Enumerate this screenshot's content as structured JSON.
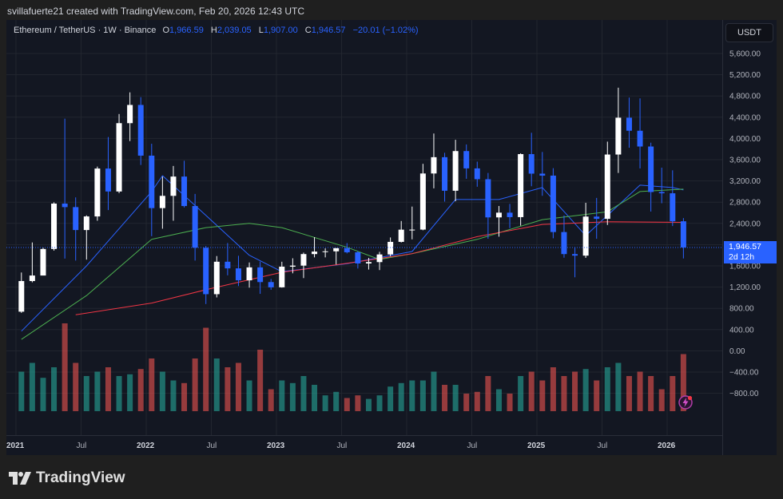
{
  "credit": "svillafuerte21 created with TradingView.com, Feb 20, 2026 12:43 UTC",
  "legend": {
    "symbol": "Ethereum / TetherUS · 1W · Binance",
    "o_label": "O",
    "o": "1,966.59",
    "h_label": "H",
    "h": "2,039.05",
    "l_label": "L",
    "l": "1,907.00",
    "c_label": "C",
    "c": "1,946.57",
    "change": "−20.01 (−1.02%)"
  },
  "currency_button": "USDT",
  "last_price": {
    "value": "1,946.57",
    "countdown": "2d 12h"
  },
  "brand": "TradingView",
  "icons": {
    "logo": "tradingview-logo-icon",
    "alert": "lightning-icon"
  },
  "colors": {
    "up": "#ffffff",
    "down": "#2962ff",
    "vol_up": "#26a69a",
    "vol_down": "#ef5350",
    "ma_blue": "#2962ff",
    "ma_green": "#4caf50",
    "ma_red": "#f23645",
    "background": "#131722"
  },
  "chart_data": {
    "type": "candlestick",
    "title": "",
    "y_ticks": [
      "5,600.00",
      "5,200.00",
      "4,800.00",
      "4,400.00",
      "4,000.00",
      "3,600.00",
      "3,200.00",
      "2,800.00",
      "2,400.00",
      "2,000.00",
      "1,600.00",
      "1,200.00",
      "800.00",
      "400.00",
      "0.00",
      "−400.00",
      "−800.00"
    ],
    "x_ticks": [
      {
        "label": "2021",
        "date": "2021-01",
        "year": true
      },
      {
        "label": "Jul",
        "date": "2021-07"
      },
      {
        "label": "2022",
        "date": "2022-01",
        "year": true
      },
      {
        "label": "Jul",
        "date": "2022-07"
      },
      {
        "label": "2023",
        "date": "2023-01",
        "year": true
      },
      {
        "label": "Jul",
        "date": "2023-07"
      },
      {
        "label": "2024",
        "date": "2024-01",
        "year": true
      },
      {
        "label": "Jul",
        "date": "2024-07"
      },
      {
        "label": "2025",
        "date": "2025-01",
        "year": true
      },
      {
        "label": "Jul",
        "date": "2025-07"
      },
      {
        "label": "2026",
        "date": "2026-01",
        "year": true
      }
    ],
    "ylim": [
      -1100,
      5900
    ],
    "grid": true,
    "columns": [
      "date",
      "open",
      "high",
      "low",
      "close",
      "volume_relative"
    ],
    "candles": [
      [
        "2021-01",
        737,
        1475,
        715,
        1314,
        45
      ],
      [
        "2021-02",
        1314,
        2041,
        1290,
        1418,
        55
      ],
      [
        "2021-03",
        1418,
        1943,
        1437,
        1918,
        38
      ],
      [
        "2021-04",
        1918,
        2797,
        1887,
        2773,
        50
      ],
      [
        "2021-05",
        2773,
        4372,
        1737,
        2707,
        100
      ],
      [
        "2021-06",
        2707,
        2890,
        1700,
        2275,
        55
      ],
      [
        "2021-07",
        2275,
        2551,
        1718,
        2531,
        40
      ],
      [
        "2021-08",
        2531,
        3470,
        2450,
        3433,
        45
      ],
      [
        "2021-09",
        3433,
        4027,
        2651,
        3001,
        50
      ],
      [
        "2021-10",
        3001,
        4460,
        2970,
        4288,
        40
      ],
      [
        "2021-11",
        4288,
        4868,
        3950,
        4631,
        42
      ],
      [
        "2021-12",
        4631,
        4778,
        3500,
        3676,
        48
      ],
      [
        "2022-01",
        3676,
        3900,
        2159,
        2688,
        60
      ],
      [
        "2022-02",
        2688,
        3282,
        2300,
        2919,
        45
      ],
      [
        "2022-03",
        2919,
        3482,
        2450,
        3282,
        35
      ],
      [
        "2022-04",
        3282,
        3580,
        2700,
        2727,
        32
      ],
      [
        "2022-05",
        2727,
        2955,
        1700,
        1942,
        60
      ],
      [
        "2022-06",
        1942,
        1975,
        881,
        1067,
        95
      ],
      [
        "2022-07",
        1067,
        1785,
        1006,
        1678,
        60
      ],
      [
        "2022-08",
        1678,
        2030,
        1422,
        1553,
        50
      ],
      [
        "2022-09",
        1553,
        1790,
        1220,
        1328,
        55
      ],
      [
        "2022-10",
        1328,
        1664,
        1190,
        1572,
        35
      ],
      [
        "2022-11",
        1572,
        1680,
        1073,
        1295,
        70
      ],
      [
        "2022-12",
        1295,
        1353,
        1150,
        1196,
        25
      ],
      [
        "2023-01",
        1196,
        1678,
        1190,
        1585,
        35
      ],
      [
        "2023-02",
        1585,
        1743,
        1460,
        1605,
        32
      ],
      [
        "2023-03",
        1605,
        1850,
        1370,
        1822,
        40
      ],
      [
        "2023-04",
        1822,
        2141,
        1760,
        1869,
        30
      ],
      [
        "2023-05",
        1869,
        1930,
        1760,
        1874,
        18
      ],
      [
        "2023-06",
        1874,
        1930,
        1626,
        1934,
        22
      ],
      [
        "2023-07",
        1934,
        2029,
        1835,
        1856,
        15
      ],
      [
        "2023-08",
        1856,
        1877,
        1550,
        1645,
        18
      ],
      [
        "2023-09",
        1645,
        1750,
        1531,
        1671,
        14
      ],
      [
        "2023-10",
        1671,
        1865,
        1521,
        1815,
        18
      ],
      [
        "2023-11",
        1815,
        2135,
        1780,
        2052,
        28
      ],
      [
        "2023-12",
        2052,
        2445,
        2040,
        2282,
        32
      ],
      [
        "2024-01",
        2282,
        2717,
        2100,
        2283,
        35
      ],
      [
        "2024-02",
        2283,
        3522,
        2270,
        3340,
        35
      ],
      [
        "2024-03",
        3340,
        4093,
        3060,
        3647,
        45
      ],
      [
        "2024-04",
        3647,
        3730,
        2810,
        3015,
        30
      ],
      [
        "2024-05",
        3015,
        3975,
        2817,
        3762,
        30
      ],
      [
        "2024-06",
        3762,
        3887,
        3240,
        3436,
        20
      ],
      [
        "2024-07",
        3436,
        3563,
        3090,
        3232,
        22
      ],
      [
        "2024-08",
        3232,
        3350,
        2111,
        2513,
        40
      ],
      [
        "2024-09",
        2513,
        2728,
        2150,
        2602,
        25
      ],
      [
        "2024-10",
        2602,
        2767,
        2310,
        2518,
        20
      ],
      [
        "2024-11",
        2518,
        3720,
        2357,
        3705,
        40
      ],
      [
        "2024-12",
        3705,
        4107,
        3100,
        3337,
        45
      ],
      [
        "2025-01",
        3337,
        3745,
        2920,
        3300,
        35
      ],
      [
        "2025-02",
        3300,
        3440,
        2120,
        2237,
        50
      ],
      [
        "2025-03",
        2237,
        2550,
        1754,
        1822,
        40
      ],
      [
        "2025-04",
        1822,
        1956,
        1385,
        1793,
        45
      ],
      [
        "2025-05",
        1793,
        2788,
        1750,
        2528,
        48
      ],
      [
        "2025-06",
        2528,
        2880,
        2110,
        2486,
        35
      ],
      [
        "2025-07",
        2486,
        3940,
        2370,
        3697,
        50
      ],
      [
        "2025-08",
        3697,
        4956,
        3350,
        4391,
        55
      ],
      [
        "2025-09",
        4391,
        4770,
        3825,
        4145,
        40
      ],
      [
        "2025-10",
        4145,
        4755,
        3435,
        3848,
        45
      ],
      [
        "2025-11",
        3848,
        3920,
        2623,
        2991,
        40
      ],
      [
        "2025-12",
        2991,
        3450,
        2780,
        2967,
        25
      ],
      [
        "2026-01",
        2967,
        3400,
        2350,
        2440,
        40
      ],
      [
        "2026-02",
        2440,
        2500,
        1740,
        1947,
        65
      ]
    ],
    "moving_averages": [
      {
        "color": "#2962ff",
        "points": [
          [
            "2021-01",
            370
          ],
          [
            "2021-07",
            1600
          ],
          [
            "2022-01",
            3000
          ],
          [
            "2022-02",
            3300
          ],
          [
            "2022-06",
            2550
          ],
          [
            "2022-10",
            1800
          ],
          [
            "2023-01",
            1490
          ],
          [
            "2023-07",
            1640
          ],
          [
            "2024-01",
            1870
          ],
          [
            "2024-05",
            2850
          ],
          [
            "2024-09",
            2850
          ],
          [
            "2025-01",
            3075
          ],
          [
            "2025-05",
            2170
          ],
          [
            "2025-07",
            2550
          ],
          [
            "2025-10",
            3120
          ],
          [
            "2026-01",
            3075
          ],
          [
            "2026-02",
            3030
          ]
        ]
      },
      {
        "color": "#4caf50",
        "points": [
          [
            "2021-01",
            215
          ],
          [
            "2021-07",
            1040
          ],
          [
            "2022-01",
            2100
          ],
          [
            "2022-06",
            2320
          ],
          [
            "2022-10",
            2400
          ],
          [
            "2023-01",
            2320
          ],
          [
            "2023-07",
            1950
          ],
          [
            "2023-10",
            1720
          ],
          [
            "2024-01",
            1830
          ],
          [
            "2024-07",
            2100
          ],
          [
            "2025-01",
            2470
          ],
          [
            "2025-07",
            2620
          ],
          [
            "2025-10",
            3000
          ],
          [
            "2026-02",
            3045
          ]
        ]
      },
      {
        "color": "#f23645",
        "points": [
          [
            "2021-06",
            680
          ],
          [
            "2022-01",
            900
          ],
          [
            "2022-06",
            1150
          ],
          [
            "2023-01",
            1480
          ],
          [
            "2023-07",
            1650
          ],
          [
            "2024-01",
            1830
          ],
          [
            "2024-07",
            2150
          ],
          [
            "2025-01",
            2380
          ],
          [
            "2025-07",
            2430
          ],
          [
            "2026-02",
            2420
          ]
        ]
      }
    ],
    "last_close": 1946.57
  }
}
